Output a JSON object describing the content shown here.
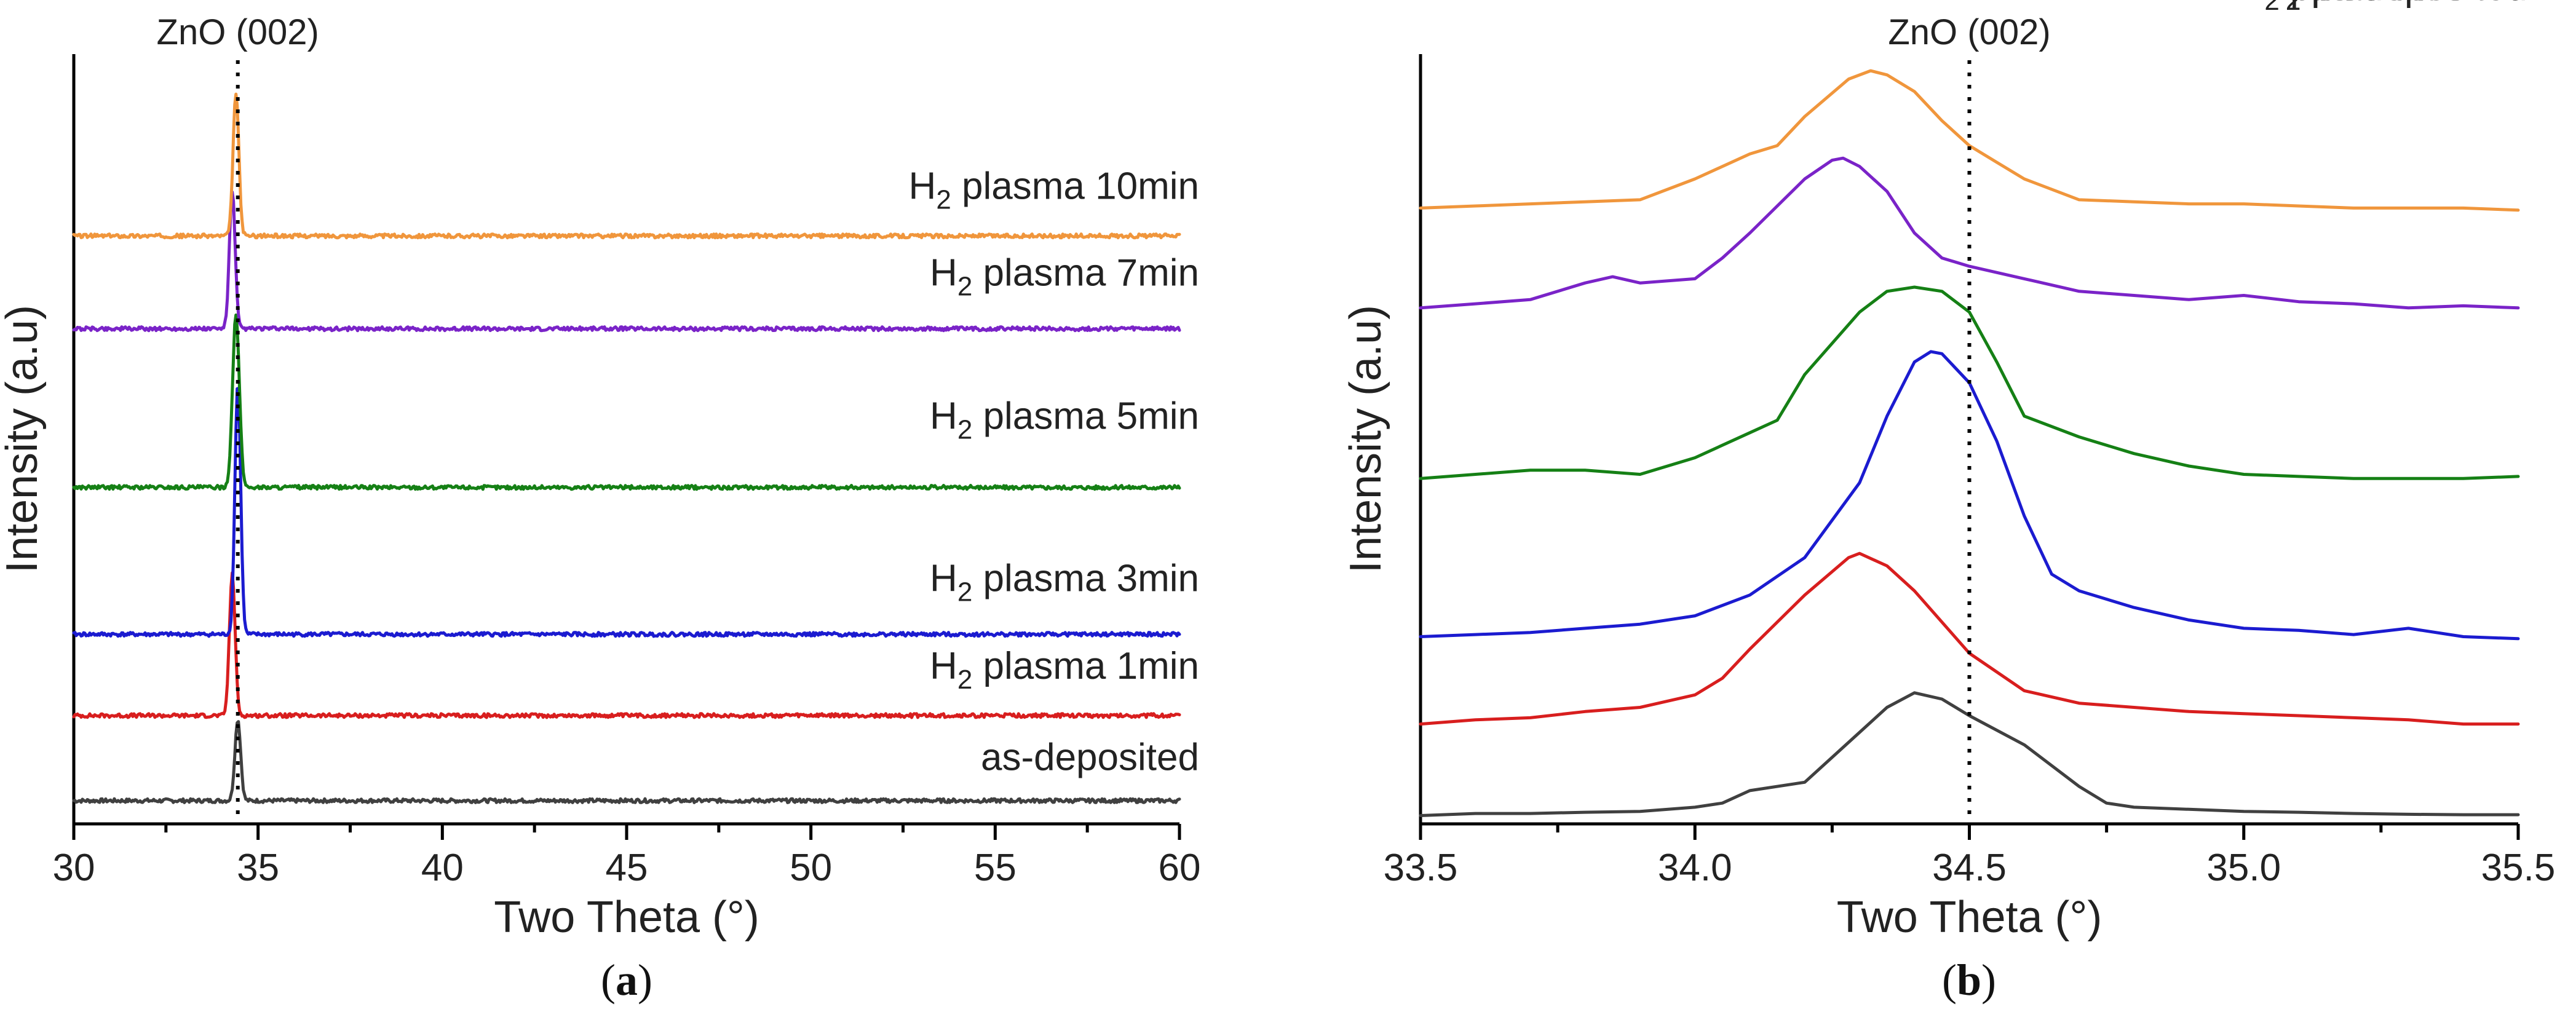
{
  "chart_data": [
    {
      "type": "line",
      "panel": "a",
      "caption_letter": "a",
      "xlabel": "Two Theta (°)",
      "ylabel": "Intensity (a.u)",
      "xlim": [
        30,
        60
      ],
      "xticks": [
        30,
        35,
        40,
        45,
        50,
        55,
        60
      ],
      "xtick_labels": [
        "30",
        "35",
        "40",
        "45",
        "50",
        "55",
        "60"
      ],
      "yticks_visible": false,
      "reference_line": {
        "x": 34.45,
        "label": "ZnO (002)",
        "style": "dotted"
      },
      "series": [
        {
          "name": "as-deposited",
          "base": "as-deposited",
          "sub": "",
          "rest": "",
          "color": "#404040",
          "offset": 0,
          "peak_center": 34.45,
          "peak_height": 2.1,
          "peak_width": 0.11,
          "noise": 0.05
        },
        {
          "name": "H2 plasma 1min",
          "base": "H",
          "sub": "2",
          "rest": " plasma 1min",
          "color": "#d81e1e",
          "offset": 2.2,
          "peak_center": 34.3,
          "peak_height": 3.65,
          "peak_width": 0.11,
          "noise": 0.05
        },
        {
          "name": "H2 plasma 3min",
          "base": "H",
          "sub": "2",
          "rest": " plasma 3min",
          "color": "#1b1bd0",
          "offset": 4.3,
          "peak_center": 34.45,
          "peak_height": 6.5,
          "peak_width": 0.11,
          "noise": 0.05
        },
        {
          "name": "H2 plasma 5min",
          "base": "H",
          "sub": "2",
          "rest": " plasma 5min",
          "color": "#158015",
          "offset": 8.1,
          "peak_center": 34.4,
          "peak_height": 4.45,
          "peak_width": 0.13,
          "noise": 0.05
        },
        {
          "name": "H2 plasma 7min",
          "base": "H",
          "sub": "2",
          "rest": " plasma 7min",
          "color": "#7a23c8",
          "offset": 12.2,
          "peak_center": 34.3,
          "peak_height": 3.55,
          "peak_width": 0.11,
          "noise": 0.05
        },
        {
          "name": "H2 plasma 10min",
          "base": "H",
          "sub": "2",
          "rest": " plasma 10min",
          "color": "#f0963c",
          "offset": 14.6,
          "peak_center": 34.4,
          "peak_height": 3.7,
          "peak_width": 0.11,
          "noise": 0.05
        }
      ]
    },
    {
      "type": "line",
      "panel": "b",
      "caption_letter": "b",
      "xlabel": "Two Theta (°)",
      "ylabel": "Intensity (a.u)",
      "xlim": [
        33.5,
        35.5
      ],
      "xticks": [
        33.5,
        34.0,
        34.5,
        35.0,
        35.5
      ],
      "xtick_labels": [
        "33.5",
        "34.0",
        "34.5",
        "35.0",
        "35.5"
      ],
      "yticks_visible": false,
      "reference_line": {
        "x": 34.5,
        "label": "ZnO (002)",
        "style": "dotted"
      },
      "series": [
        {
          "name": "as-deposited",
          "base": "as-deposited",
          "sub": "",
          "rest": "",
          "color": "#404040",
          "points": [
            [
              33.5,
              0
            ],
            [
              33.6,
              0.05
            ],
            [
              33.7,
              0.05
            ],
            [
              33.8,
              0.08
            ],
            [
              33.9,
              0.1
            ],
            [
              34.0,
              0.2
            ],
            [
              34.05,
              0.3
            ],
            [
              34.1,
              0.6
            ],
            [
              34.2,
              0.8
            ],
            [
              34.3,
              2.0
            ],
            [
              34.35,
              2.6
            ],
            [
              34.4,
              2.95
            ],
            [
              34.45,
              2.8
            ],
            [
              34.5,
              2.4
            ],
            [
              34.6,
              1.7
            ],
            [
              34.7,
              0.7
            ],
            [
              34.75,
              0.3
            ],
            [
              34.8,
              0.2
            ],
            [
              34.9,
              0.15
            ],
            [
              35.0,
              0.1
            ],
            [
              35.1,
              0.08
            ],
            [
              35.2,
              0.05
            ],
            [
              35.3,
              0.03
            ],
            [
              35.4,
              0.02
            ],
            [
              35.5,
              0.02
            ]
          ]
        },
        {
          "name": "H2 plasma 1min",
          "base": "H",
          "sub": "2",
          "rest": " plasma 1min",
          "color": "#d81e1e",
          "points": [
            [
              33.5,
              2.2
            ],
            [
              33.6,
              2.3
            ],
            [
              33.7,
              2.35
            ],
            [
              33.8,
              2.5
            ],
            [
              33.9,
              2.6
            ],
            [
              34.0,
              2.9
            ],
            [
              34.05,
              3.3
            ],
            [
              34.1,
              4.0
            ],
            [
              34.2,
              5.3
            ],
            [
              34.28,
              6.2
            ],
            [
              34.3,
              6.3
            ],
            [
              34.35,
              6.0
            ],
            [
              34.4,
              5.4
            ],
            [
              34.5,
              3.9
            ],
            [
              34.6,
              3.0
            ],
            [
              34.7,
              2.7
            ],
            [
              34.8,
              2.6
            ],
            [
              34.9,
              2.5
            ],
            [
              35.0,
              2.45
            ],
            [
              35.1,
              2.4
            ],
            [
              35.2,
              2.35
            ],
            [
              35.3,
              2.3
            ],
            [
              35.4,
              2.2
            ],
            [
              35.5,
              2.2
            ]
          ]
        },
        {
          "name": "H2 plasma 3min",
          "base": "H",
          "sub": "2",
          "rest": " plasma 3min",
          "color": "#1b1bd0",
          "points": [
            [
              33.5,
              4.3
            ],
            [
              33.6,
              4.35
            ],
            [
              33.7,
              4.4
            ],
            [
              33.8,
              4.5
            ],
            [
              33.9,
              4.6
            ],
            [
              34.0,
              4.8
            ],
            [
              34.1,
              5.3
            ],
            [
              34.2,
              6.2
            ],
            [
              34.3,
              8.0
            ],
            [
              34.35,
              9.6
            ],
            [
              34.4,
              10.9
            ],
            [
              34.43,
              11.15
            ],
            [
              34.45,
              11.1
            ],
            [
              34.5,
              10.4
            ],
            [
              34.55,
              9.0
            ],
            [
              34.6,
              7.2
            ],
            [
              34.65,
              5.8
            ],
            [
              34.7,
              5.4
            ],
            [
              34.8,
              5.0
            ],
            [
              34.9,
              4.7
            ],
            [
              35.0,
              4.5
            ],
            [
              35.1,
              4.45
            ],
            [
              35.2,
              4.35
            ],
            [
              35.3,
              4.5
            ],
            [
              35.4,
              4.3
            ],
            [
              35.5,
              4.25
            ]
          ]
        },
        {
          "name": "H2 plasma 5min",
          "base": "H",
          "sub": "2",
          "rest": " plasma 5min",
          "color": "#158015",
          "points": [
            [
              33.5,
              8.1
            ],
            [
              33.6,
              8.2
            ],
            [
              33.7,
              8.3
            ],
            [
              33.8,
              8.3
            ],
            [
              33.9,
              8.2
            ],
            [
              34.0,
              8.6
            ],
            [
              34.1,
              9.2
            ],
            [
              34.15,
              9.5
            ],
            [
              34.2,
              10.6
            ],
            [
              34.3,
              12.1
            ],
            [
              34.35,
              12.6
            ],
            [
              34.4,
              12.7
            ],
            [
              34.45,
              12.6
            ],
            [
              34.5,
              12.1
            ],
            [
              34.55,
              10.9
            ],
            [
              34.6,
              9.6
            ],
            [
              34.7,
              9.1
            ],
            [
              34.8,
              8.7
            ],
            [
              34.9,
              8.4
            ],
            [
              35.0,
              8.2
            ],
            [
              35.1,
              8.15
            ],
            [
              35.2,
              8.1
            ],
            [
              35.3,
              8.1
            ],
            [
              35.4,
              8.1
            ],
            [
              35.5,
              8.15
            ]
          ]
        },
        {
          "name": "H2 plasma 7min",
          "base": "H",
          "sub": "2",
          "rest": " plasma 7min",
          "color": "#7a23c8",
          "points": [
            [
              33.5,
              12.2
            ],
            [
              33.6,
              12.3
            ],
            [
              33.7,
              12.4
            ],
            [
              33.8,
              12.8
            ],
            [
              33.85,
              12.95
            ],
            [
              33.9,
              12.8
            ],
            [
              34.0,
              12.9
            ],
            [
              34.05,
              13.4
            ],
            [
              34.1,
              14.0
            ],
            [
              34.2,
              15.3
            ],
            [
              34.25,
              15.75
            ],
            [
              34.27,
              15.8
            ],
            [
              34.3,
              15.6
            ],
            [
              34.35,
              15.0
            ],
            [
              34.4,
              14.0
            ],
            [
              34.45,
              13.4
            ],
            [
              34.5,
              13.2
            ],
            [
              34.6,
              12.9
            ],
            [
              34.7,
              12.6
            ],
            [
              34.8,
              12.5
            ],
            [
              34.9,
              12.4
            ],
            [
              35.0,
              12.5
            ],
            [
              35.1,
              12.35
            ],
            [
              35.2,
              12.3
            ],
            [
              35.3,
              12.2
            ],
            [
              35.4,
              12.25
            ],
            [
              35.5,
              12.2
            ]
          ]
        },
        {
          "name": "H2 plasma 10min",
          "base": "H",
          "sub": "2",
          "rest": " plasma 10min",
          "color": "#f0963c",
          "points": [
            [
              33.5,
              14.6
            ],
            [
              33.6,
              14.65
            ],
            [
              33.7,
              14.7
            ],
            [
              33.8,
              14.75
            ],
            [
              33.9,
              14.8
            ],
            [
              34.0,
              15.3
            ],
            [
              34.1,
              15.9
            ],
            [
              34.15,
              16.1
            ],
            [
              34.2,
              16.8
            ],
            [
              34.28,
              17.7
            ],
            [
              34.32,
              17.9
            ],
            [
              34.35,
              17.8
            ],
            [
              34.4,
              17.4
            ],
            [
              34.45,
              16.7
            ],
            [
              34.5,
              16.1
            ],
            [
              34.55,
              15.7
            ],
            [
              34.6,
              15.3
            ],
            [
              34.7,
              14.8
            ],
            [
              34.8,
              14.75
            ],
            [
              34.9,
              14.7
            ],
            [
              35.0,
              14.7
            ],
            [
              35.1,
              14.65
            ],
            [
              35.2,
              14.6
            ],
            [
              35.3,
              14.6
            ],
            [
              35.4,
              14.6
            ],
            [
              35.5,
              14.55
            ]
          ]
        }
      ]
    }
  ]
}
